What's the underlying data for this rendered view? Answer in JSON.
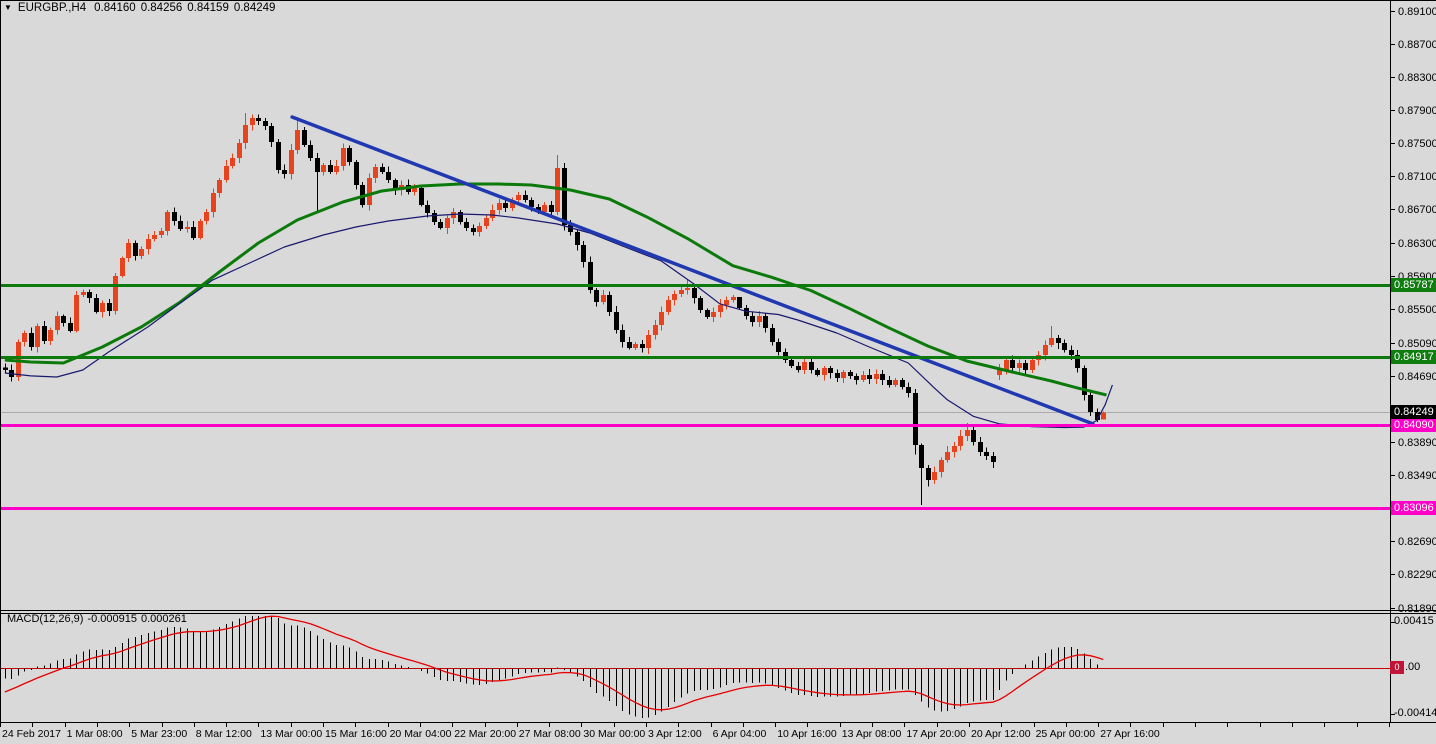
{
  "icons": {
    "triangle": "▼"
  },
  "header": {
    "symbol": "EURGBP.,H4",
    "open": "0.84160",
    "high": "0.84256",
    "low": "0.84159",
    "close": "0.84249"
  },
  "colors": {
    "background": "#D9D9D9",
    "bull_candle": "#E8431F",
    "bear_candle": "#000000",
    "ma_fast_navy": "#191970",
    "ma_slow_green": "#0B7A0B",
    "trendline_blue": "#2038B0",
    "hline_green": "#0C7A0C",
    "hline_magenta": "#FF00C8",
    "current_price_line": "#ABABAB",
    "macd_histogram": "#000000",
    "macd_signal": "#E60000",
    "macd_zero_line": "#C80000",
    "frame": "#000000",
    "current_price_label_bg": "#000000",
    "macd_value_bg": "#C21436"
  },
  "chart_data": {
    "type": "candlestick",
    "symbol": "EURGBP",
    "timeframe": "H4",
    "title": "EURGBP.,H4 0.84160 0.84256 0.84159 0.84249",
    "ylim": [
      0.8185,
      0.8924
    ],
    "closes": [
      0.8476,
      0.84675,
      0.85098,
      0.85207,
      0.85038,
      0.85292,
      0.8511,
      0.85243,
      0.85412,
      0.85328,
      0.85231,
      0.85666,
      0.85702,
      0.8563,
      0.85461,
      0.8557,
      0.85473,
      0.85896,
      0.86113,
      0.86295,
      0.86137,
      0.86222,
      0.86343,
      0.86391,
      0.8644,
      0.86669,
      0.8656,
      0.86464,
      0.86488,
      0.86355,
      0.8656,
      0.86669,
      0.86899,
      0.87056,
      0.87225,
      0.87322,
      0.87503,
      0.8772,
      0.87805,
      0.87769,
      0.87708,
      0.87515,
      0.87177,
      0.87128,
      0.87418,
      0.8766,
      0.87479,
      0.87322,
      0.87152,
      0.87237,
      0.87152,
      0.87225,
      0.87442,
      0.87273,
      0.86995,
      0.86754,
      0.8708,
      0.87213,
      0.87152,
      0.87056,
      0.86935,
      0.86995,
      0.86911,
      0.86959,
      0.86754,
      0.86657,
      0.86548,
      0.86476,
      0.86597,
      0.86669,
      0.86548,
      0.86476,
      0.86427,
      0.865,
      0.86597,
      0.86693,
      0.86778,
      0.86717,
      0.86814,
      0.86875,
      0.86814,
      0.86729,
      0.86669,
      0.86754,
      0.86669,
      0.87201,
      0.86512,
      0.86427,
      0.8627,
      0.86065,
      0.85727,
      0.85582,
      0.85666,
      0.85461,
      0.85243,
      0.85098,
      0.85026,
      0.85074,
      0.85026,
      0.85183,
      0.85304,
      0.85461,
      0.85606,
      0.85678,
      0.85727,
      0.85751,
      0.8563,
      0.85485,
      0.854,
      0.85461,
      0.85545,
      0.85606,
      0.85642,
      0.85509,
      0.85412,
      0.8534,
      0.85412,
      0.85268,
      0.85098,
      0.84978,
      0.84881,
      0.84808,
      0.8476,
      0.84857,
      0.8476,
      0.847,
      0.84784,
      0.84724,
      0.84663,
      0.84736,
      0.84688,
      0.84639,
      0.847,
      0.84651,
      0.84712,
      0.84639,
      0.84579,
      0.84639,
      0.84555,
      0.84482,
      0.83854,
      0.83576,
      0.83431,
      0.83528,
      0.83673,
      0.83769,
      0.83842,
      0.83963,
      0.84035,
      0.8389,
      0.83769,
      0.83721,
      0.83648,
      0.8476,
      0.84881,
      0.84784,
      0.84845,
      0.8476,
      0.84881,
      0.84941,
      0.85062,
      0.85147,
      0.85086,
      0.85002,
      0.84941,
      0.84784,
      0.84458,
      0.84253,
      0.84156,
      0.84249
    ],
    "opens_override": {
      "0": 0.8479,
      "153": 0.847,
      "169": 0.8416
    },
    "wick_overrides": {
      "37": {
        "h": 0.87865
      },
      "38": {
        "h": 0.8785
      },
      "45": {
        "h": 0.87817
      },
      "48": {
        "l": 0.86657
      },
      "85": {
        "h": 0.87358
      },
      "105": {
        "h": 0.8585
      },
      "113": {
        "h": 0.856
      },
      "140": {
        "l": 0.8374
      },
      "141": {
        "l": 0.8313
      },
      "142": {
        "l": 0.8335
      },
      "148": {
        "h": 0.8412
      },
      "161": {
        "h": 0.85292
      },
      "169": {
        "h": 0.84256,
        "l": 0.84159
      }
    },
    "gap_note": "weekend gap up between index 152 and 153",
    "ma_slow_green": [
      [
        0,
        0.84881
      ],
      [
        4,
        0.84857
      ],
      [
        9,
        0.84845
      ],
      [
        15,
        0.85038
      ],
      [
        21,
        0.8528
      ],
      [
        27,
        0.85582
      ],
      [
        33,
        0.85944
      ],
      [
        39,
        0.86295
      ],
      [
        45,
        0.86572
      ],
      [
        52,
        0.8679
      ],
      [
        58,
        0.86923
      ],
      [
        64,
        0.86983
      ],
      [
        70,
        0.87007
      ],
      [
        76,
        0.87007
      ],
      [
        81,
        0.86995
      ],
      [
        87,
        0.86935
      ],
      [
        93,
        0.86826
      ],
      [
        99,
        0.866
      ],
      [
        105,
        0.8635
      ],
      [
        112,
        0.8602
      ],
      [
        118,
        0.8588
      ],
      [
        124,
        0.8572
      ],
      [
        130,
        0.855
      ],
      [
        136,
        0.8527
      ],
      [
        142,
        0.8505
      ],
      [
        148,
        0.84869
      ],
      [
        155,
        0.84736
      ],
      [
        161,
        0.84627
      ],
      [
        165,
        0.84543
      ],
      [
        169.5,
        0.84458
      ]
    ],
    "ma_fast_navy": [
      [
        0,
        0.84724
      ],
      [
        4,
        0.84688
      ],
      [
        8,
        0.84675
      ],
      [
        12,
        0.8476
      ],
      [
        16,
        0.84978
      ],
      [
        22,
        0.8528
      ],
      [
        27,
        0.8557
      ],
      [
        32,
        0.85848
      ],
      [
        38,
        0.86065
      ],
      [
        43,
        0.86246
      ],
      [
        49,
        0.86391
      ],
      [
        54,
        0.86488
      ],
      [
        59,
        0.8656
      ],
      [
        65,
        0.86621
      ],
      [
        70,
        0.86645
      ],
      [
        75,
        0.86633
      ],
      [
        79,
        0.86597
      ],
      [
        85,
        0.86524
      ],
      [
        90,
        0.86415
      ],
      [
        95,
        0.86258
      ],
      [
        101,
        0.86077
      ],
      [
        106,
        0.858
      ],
      [
        110,
        0.8556
      ],
      [
        114,
        0.8547
      ],
      [
        119,
        0.8543
      ],
      [
        122,
        0.85364
      ],
      [
        128,
        0.85207
      ],
      [
        133,
        0.85038
      ],
      [
        139,
        0.84845
      ],
      [
        143,
        0.84543
      ],
      [
        145,
        0.844
      ],
      [
        149,
        0.842
      ],
      [
        153,
        0.8411
      ],
      [
        158,
        0.84075
      ],
      [
        163,
        0.84065
      ],
      [
        166,
        0.8407
      ],
      [
        168,
        0.8415
      ],
      [
        169.3,
        0.8434
      ],
      [
        170.4,
        0.8458
      ]
    ],
    "trendline": {
      "i1": 44.2,
      "p1": 0.87817,
      "i2": 167.4,
      "p2": 0.84108
    },
    "horizontal_lines": [
      {
        "price": 0.85787,
        "label": "0.85787",
        "color": "green"
      },
      {
        "price": 0.84917,
        "label": "0.84917",
        "color": "green"
      },
      {
        "price": 0.8409,
        "label": "0.84090",
        "color": "magenta"
      },
      {
        "price": 0.83096,
        "label": "0.83096",
        "color": "magenta"
      }
    ],
    "current_price": {
      "value": 0.84249,
      "label": "0.84249"
    },
    "price_axis_ticks": [
      "0.89100",
      "0.88700",
      "0.88300",
      "0.87900",
      "0.87500",
      "0.87100",
      "0.86700",
      "0.86300",
      "0.85900",
      "0.85500",
      "0.85090",
      "0.84690",
      "0.84290",
      "0.83890",
      "0.83490",
      "0.82690",
      "0.82290",
      "0.81890"
    ],
    "time_labels": [
      "24 Feb 2017",
      "1 Mar 08:00",
      "5 Mar 23:00",
      "8 Mar 12:00",
      "13 Mar 00:00",
      "15 Mar 16:00",
      "20 Mar 04:00",
      "22 Mar 20:00",
      "27 Mar 08:00",
      "30 Mar 00:00",
      "3 Apr 12:00",
      "6 Apr 04:00",
      "10 Apr 16:00",
      "13 Apr 08:00",
      "17 Apr 20:00",
      "20 Apr 12:00",
      "25 Apr 00:00",
      "27 Apr 16:00"
    ],
    "macd": {
      "title": "MACD(12,26,9)",
      "value_main": "-0.000915",
      "value_signal": "0.000261",
      "params": {
        "fast": 12,
        "slow": 26,
        "signal": 9
      },
      "axis_top": "0.00415",
      "axis_zero_box": "0",
      "axis_zero_rest": ".00",
      "axis_bottom": "-0.004148"
    }
  }
}
